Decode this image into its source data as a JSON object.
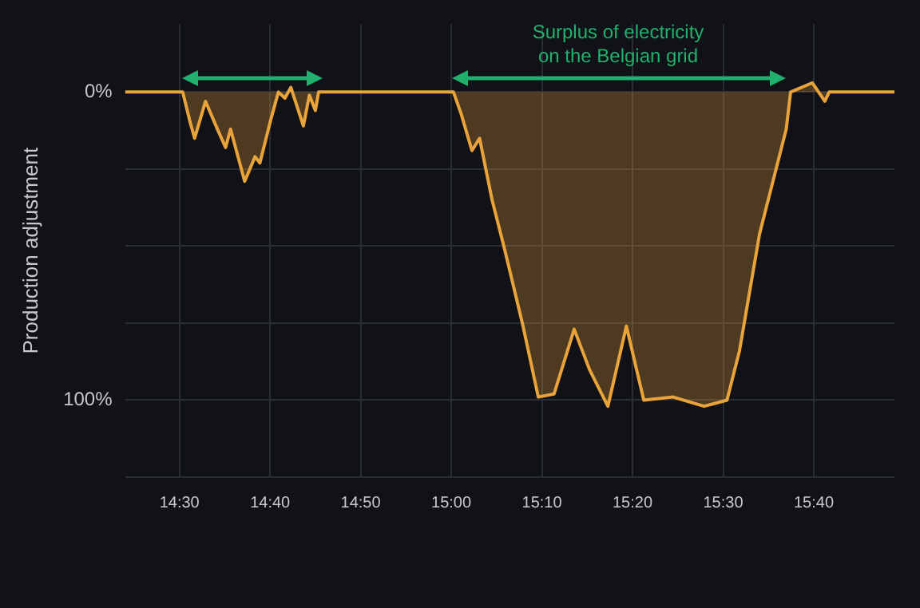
{
  "chart_data": {
    "type": "area",
    "ylabel": "Production adjustment",
    "xlim": [
      14.4,
      15.815
    ],
    "ylim": [
      125,
      -22
    ],
    "xticks": [
      {
        "value": 14.5,
        "label": "14:30"
      },
      {
        "value": 14.6667,
        "label": "14:40"
      },
      {
        "value": 14.8333,
        "label": "14:50"
      },
      {
        "value": 15,
        "label": "15:00"
      },
      {
        "value": 15.1667,
        "label": "15:10"
      },
      {
        "value": 15.3333,
        "label": "15:20"
      },
      {
        "value": 15.5,
        "label": "15:30"
      },
      {
        "value": 15.6667,
        "label": "15:40"
      }
    ],
    "yticks": [
      {
        "value": 0,
        "label": "0%"
      },
      {
        "value": 25,
        "label": null
      },
      {
        "value": 50,
        "label": null
      },
      {
        "value": 75,
        "label": null
      },
      {
        "value": 100,
        "label": "100%"
      },
      {
        "value": 125,
        "label": null
      }
    ],
    "grid": true,
    "legend": false,
    "x": [
      14.4,
      14.5,
      14.506,
      14.52,
      14.528,
      14.548,
      14.571,
      14.585,
      14.594,
      14.62,
      14.639,
      14.648,
      14.668,
      14.682,
      14.694,
      14.705,
      14.728,
      14.739,
      14.75,
      14.756,
      15.0,
      15.004,
      15.018,
      15.038,
      15.052,
      15.075,
      15.098,
      15.132,
      15.16,
      15.189,
      15.226,
      15.254,
      15.288,
      15.322,
      15.354,
      15.408,
      15.465,
      15.507,
      15.53,
      15.567,
      15.616,
      15.624,
      15.664,
      15.687,
      15.695,
      15.815
    ],
    "series": [
      {
        "color": "#e8a33a",
        "values": [
          0,
          0,
          0,
          10,
          15,
          3,
          12.5,
          18,
          12,
          29,
          21,
          23,
          9,
          0,
          2,
          -1.5,
          11,
          1,
          6,
          0,
          0,
          0,
          7,
          19,
          15,
          35,
          51,
          76,
          99,
          98,
          77,
          90,
          102,
          76,
          100,
          99,
          102,
          100,
          84,
          46,
          12,
          0,
          -3,
          3,
          0,
          0
        ]
      }
    ],
    "annotations": [
      "Surplus of electricity\non the Belgian grid"
    ]
  }
}
